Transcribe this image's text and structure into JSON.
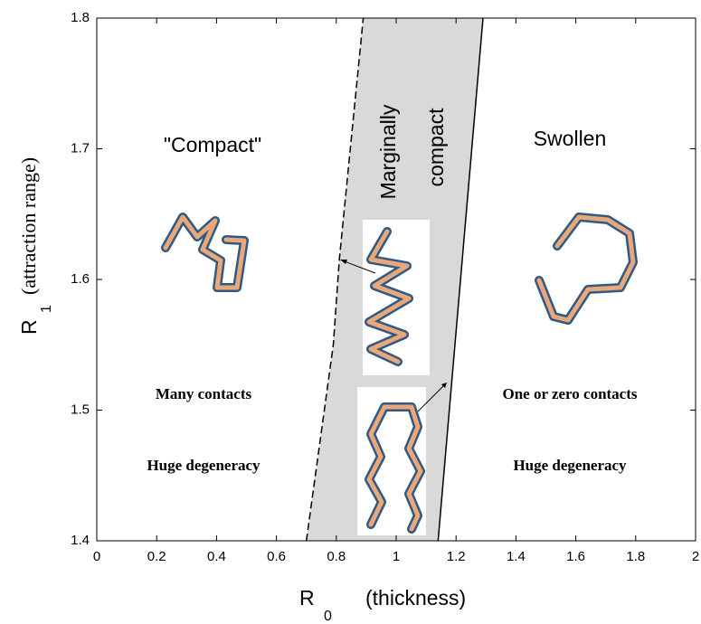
{
  "chart_data": {
    "type": "line",
    "xlabel": {
      "main": "R",
      "sub": "0",
      "note": "(thickness)"
    },
    "ylabel": {
      "main": "R",
      "sub": "1",
      "note": "(attraction range)"
    },
    "xlim": [
      0,
      2
    ],
    "ylim": [
      1.4,
      1.8
    ],
    "xticks": [
      0,
      0.2,
      0.4,
      0.6,
      0.8,
      1,
      1.2,
      1.4,
      1.6,
      1.8,
      2
    ],
    "yticks": [
      1.4,
      1.5,
      1.6,
      1.7,
      1.8
    ],
    "fill_between": "#d9d9d9",
    "series": [
      {
        "x": [
          0.7,
          0.79,
          0.81,
          0.89
        ],
        "values": [
          1.4,
          1.55,
          1.615,
          1.8
        ],
        "color": "#000000",
        "dash": true
      },
      {
        "x": [
          1.14,
          1.29
        ],
        "values": [
          1.4,
          1.8
        ],
        "color": "#000000",
        "dash": false
      }
    ],
    "annotations": [
      "\"Compact\"",
      "Marginally",
      "compact",
      "Swollen",
      "Many   contacts",
      "Huge degeneracy",
      "One or zero contacts",
      "Huge degeneracy"
    ]
  }
}
